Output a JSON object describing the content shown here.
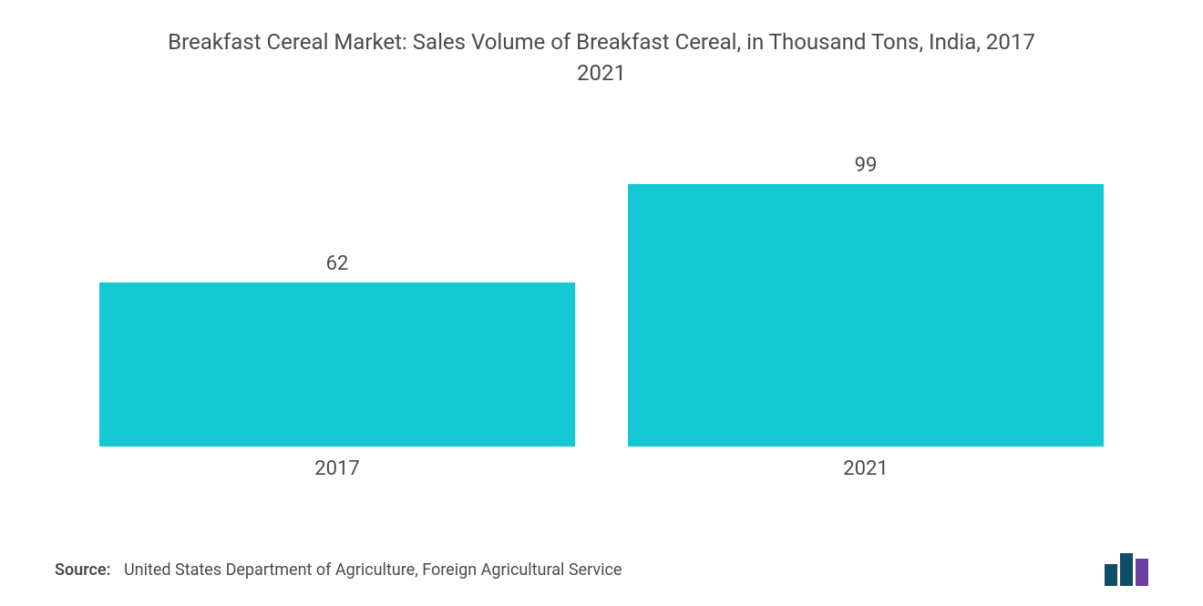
{
  "chart": {
    "type": "bar",
    "title_line1": "Breakfast Cereal Market: Sales Volume of Breakfast Cereal, in Thousand Tons, India, 2017",
    "title_line2": "2021",
    "title_fontsize": 24,
    "title_color": "#4a4a4a",
    "categories": [
      "2017",
      "2021"
    ],
    "values": [
      62,
      99
    ],
    "ylim_max": 110,
    "bar_color": "#14c8d4",
    "bar_width_percent": 100,
    "value_label_fontsize": 22,
    "value_label_color": "#4a4a4a",
    "category_label_fontsize": 22,
    "category_label_color": "#4a4a4a",
    "background_color": "#ffffff"
  },
  "source": {
    "label": "Source:",
    "text": "United States Department of Agriculture, Foreign Agricultural Service",
    "fontsize": 18,
    "color": "#4a4a4a"
  },
  "logo": {
    "bars": [
      {
        "width": 14,
        "height": 24,
        "color": "#104d66"
      },
      {
        "width": 14,
        "height": 36,
        "color": "#104d66"
      },
      {
        "width": 14,
        "height": 30,
        "color": "#6b3fa0"
      }
    ]
  }
}
